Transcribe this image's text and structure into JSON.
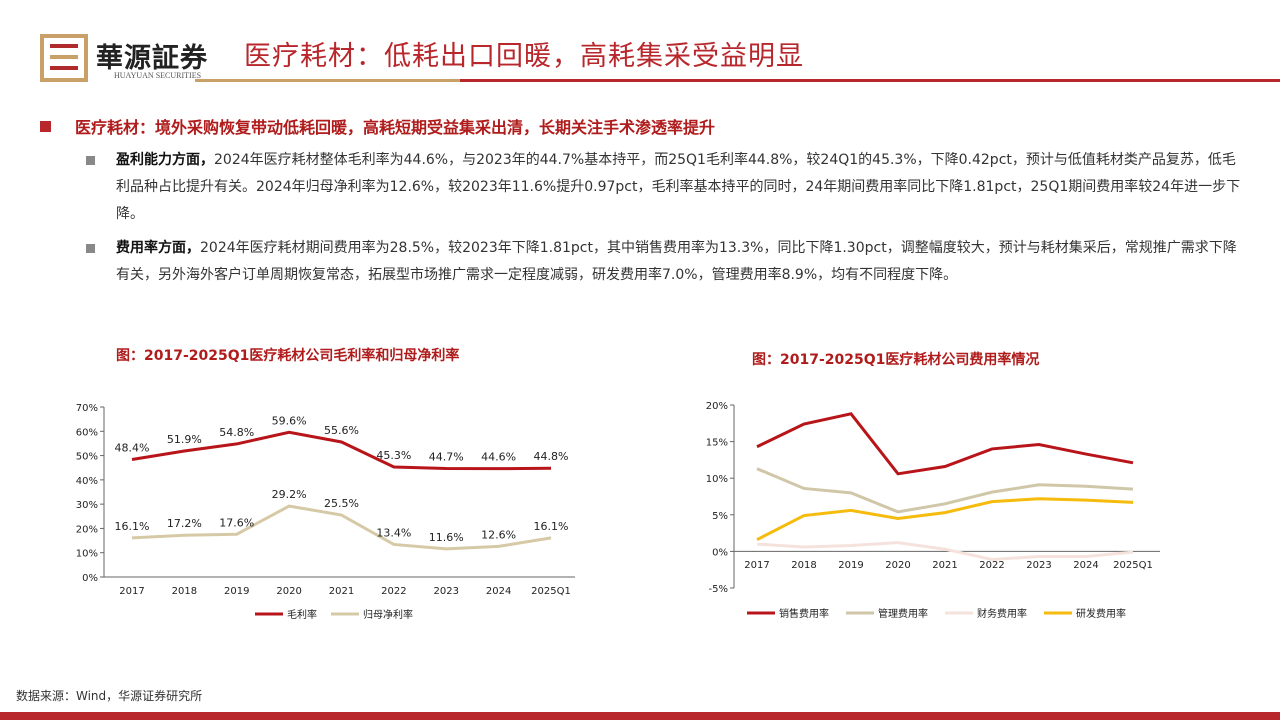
{
  "header": {
    "brand": "華源証券",
    "brand_en": "HUAYUAN SECURITIES",
    "title": "医疗耗材：低耗出口回暖，高耗集采受益明显"
  },
  "section": {
    "heading": "医疗耗材：境外采购恢复带动低耗回暖，高耗短期受益集采出清，长期关注手术渗透率提升",
    "bullets": [
      {
        "lead": "盈利能力方面，",
        "text": "2024年医疗耗材整体毛利率为44.6%，与2023年的44.7%基本持平，而25Q1毛利率44.8%，较24Q1的45.3%，下降0.42pct，预计与低值耗材类产品复苏，低毛利品种占比提升有关。2024年归母净利率为12.6%，较2023年11.6%提升0.97pct，毛利率基本持平的同时，24年期间费用率同比下降1.81pct，25Q1期间费用率较24年进一步下降。"
      },
      {
        "lead": "费用率方面，",
        "text": "2024年医疗耗材期间费用率为28.5%，较2023年下降1.81pct，其中销售费用率为13.3%，同比下降1.30pct，调整幅度较大，预计与耗材集采后，常规推广需求下降有关，另外海外客户订单周期恢复常态，拓展型市场推广需求一定程度减弱，研发费用率7.0%，管理费用率8.9%，均有不同程度下降。"
      }
    ]
  },
  "source": "数据来源：Wind，华源证券研究所",
  "chart_data": [
    {
      "type": "line",
      "title": "图：2017-2025Q1医疗耗材公司毛利率和归母净利率",
      "categories": [
        "2017",
        "2018",
        "2019",
        "2020",
        "2021",
        "2022",
        "2023",
        "2024",
        "2025Q1"
      ],
      "ylim": [
        0,
        70
      ],
      "yticks": [
        "0%",
        "10%",
        "20%",
        "30%",
        "40%",
        "50%",
        "60%",
        "70%"
      ],
      "legend": "bottom",
      "series": [
        {
          "name": "毛利率",
          "color": "#b8151b",
          "values": [
            48.4,
            51.9,
            54.8,
            59.6,
            55.6,
            45.3,
            44.7,
            44.6,
            44.8
          ],
          "labels": [
            "48.4%",
            "51.9%",
            "54.8%",
            "59.6%",
            "55.6%",
            "45.3%",
            "44.7%",
            "44.6%",
            "44.8%"
          ]
        },
        {
          "name": "归母净利率",
          "color": "#d6c9a6",
          "values": [
            16.1,
            17.2,
            17.6,
            29.2,
            25.5,
            13.4,
            11.6,
            12.6,
            16.1
          ],
          "labels": [
            "16.1%",
            "17.2%",
            "17.6%",
            "29.2%",
            "25.5%",
            "13.4%",
            "11.6%",
            "12.6%",
            "16.1%"
          ]
        }
      ]
    },
    {
      "type": "line",
      "title": "图：2017-2025Q1医疗耗材公司费用率情况",
      "categories": [
        "2017",
        "2018",
        "2019",
        "2020",
        "2021",
        "2022",
        "2023",
        "2024",
        "2025Q1"
      ],
      "ylim": [
        -5,
        20
      ],
      "yticks": [
        "-5%",
        "0%",
        "5%",
        "10%",
        "15%",
        "20%"
      ],
      "legend": "bottom",
      "series": [
        {
          "name": "销售费用率",
          "color": "#b8151b",
          "values": [
            14.3,
            17.4,
            18.8,
            10.6,
            11.6,
            14.0,
            14.6,
            13.3,
            12.1
          ]
        },
        {
          "name": "管理费用率",
          "color": "#d0c6a8",
          "values": [
            11.3,
            8.6,
            8.0,
            5.4,
            6.5,
            8.1,
            9.1,
            8.9,
            8.5
          ]
        },
        {
          "name": "财务费用率",
          "color": "#f6e2dc",
          "values": [
            1.0,
            0.6,
            0.8,
            1.2,
            0.3,
            -1.1,
            -0.7,
            -0.7,
            -0.1
          ]
        },
        {
          "name": "研发费用率",
          "color": "#f5bb0d",
          "values": [
            1.6,
            4.9,
            5.6,
            4.5,
            5.3,
            6.8,
            7.2,
            7.0,
            6.7
          ]
        }
      ]
    }
  ]
}
